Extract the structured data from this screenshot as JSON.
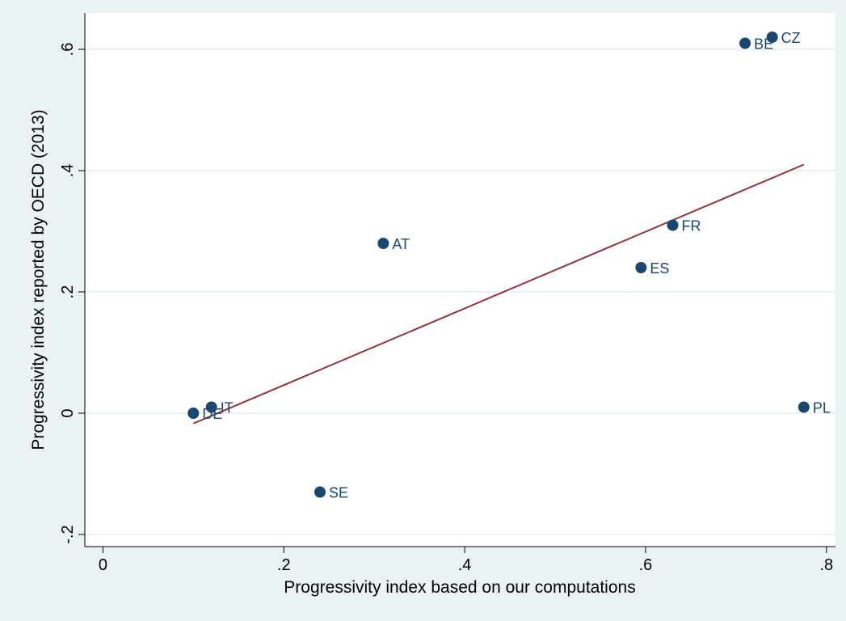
{
  "chart_data": {
    "type": "scatter",
    "title": "",
    "xlabel": "Progressivity index based on our computations",
    "ylabel": "Progressivity index reported by OECD (2013)",
    "xlim": [
      -0.02,
      0.81
    ],
    "ylim": [
      -0.22,
      0.66
    ],
    "xticks": [
      0,
      0.2,
      0.4,
      0.6,
      0.8
    ],
    "xtick_labels": [
      "0",
      ".2",
      ".4",
      ".6",
      ".8"
    ],
    "yticks": [
      -0.2,
      0,
      0.2,
      0.4,
      0.6
    ],
    "ytick_labels": [
      "-.2",
      "0",
      ".2",
      ".4",
      ".6"
    ],
    "grid": true,
    "legend": "none",
    "points": [
      {
        "label": "DE",
        "x": 0.1,
        "y": 0.0
      },
      {
        "label": "IT",
        "x": 0.12,
        "y": 0.01
      },
      {
        "label": "SE",
        "x": 0.24,
        "y": -0.13
      },
      {
        "label": "AT",
        "x": 0.31,
        "y": 0.28
      },
      {
        "label": "ES",
        "x": 0.595,
        "y": 0.24
      },
      {
        "label": "FR",
        "x": 0.63,
        "y": 0.31
      },
      {
        "label": "BE",
        "x": 0.71,
        "y": 0.61
      },
      {
        "label": "CZ",
        "x": 0.74,
        "y": 0.62
      },
      {
        "label": "PL",
        "x": 0.775,
        "y": 0.01
      }
    ],
    "fit_line": {
      "x": [
        0.1,
        0.775
      ],
      "y": [
        -0.017,
        0.41
      ]
    },
    "colors": {
      "background": "#eaf2f3",
      "plot_area": "#ffffff",
      "marker": "#1a476f",
      "fit_line": "#90353b",
      "grid": "#eaf2f3",
      "axis": "#000000"
    }
  }
}
